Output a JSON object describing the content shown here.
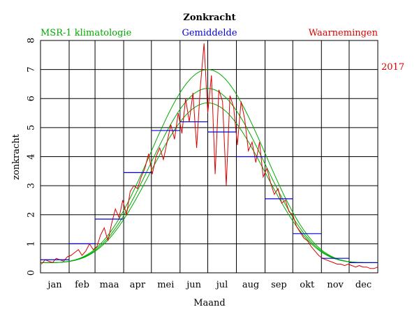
{
  "chart_data": {
    "type": "line",
    "title": "Zonkracht",
    "xlabel": "Maand",
    "ylabel": "zonkracht",
    "year_label": "2017",
    "ylim": [
      0,
      8
    ],
    "xlim": [
      0,
      365
    ],
    "yticks": [
      "0",
      "1",
      "2",
      "3",
      "4",
      "5",
      "6",
      "7",
      "8"
    ],
    "months": [
      "jan",
      "feb",
      "maa",
      "apr",
      "mei",
      "jun",
      "jul",
      "aug",
      "sep",
      "okt",
      "nov",
      "dec"
    ],
    "grid": true,
    "legend": [
      {
        "name": "MSR-1 klimatologie",
        "color": "#00aa00"
      },
      {
        "name": "Gemiddelde",
        "color": "#0000dd"
      },
      {
        "name": "Waarnemingen",
        "color": "#dd0000"
      }
    ],
    "climatology_peaks": [
      7.0,
      6.35,
      5.85
    ],
    "climatology_baseline": 0.35,
    "climatology_peak_day": 181,
    "monthly_means": [
      0.45,
      1.0,
      1.85,
      3.45,
      4.9,
      5.2,
      4.85,
      4.0,
      2.55,
      1.35,
      0.5,
      0.35
    ],
    "observations": {
      "start_day": 1,
      "step_days": 4,
      "values": [
        0.3,
        0.45,
        0.4,
        0.35,
        0.5,
        0.45,
        0.4,
        0.55,
        0.6,
        0.7,
        0.8,
        0.6,
        0.75,
        1.0,
        0.8,
        0.9,
        1.3,
        1.55,
        1.1,
        1.7,
        2.2,
        1.9,
        2.5,
        2.0,
        2.8,
        3.0,
        2.9,
        3.3,
        3.6,
        4.1,
        3.4,
        4.0,
        4.3,
        3.9,
        4.5,
        5.1,
        4.6,
        5.5,
        4.8,
        6.0,
        5.2,
        6.2,
        4.3,
        6.4,
        7.9,
        5.5,
        6.8,
        3.4,
        6.3,
        5.9,
        3.0,
        6.1,
        5.7,
        4.4,
        5.9,
        5.3,
        4.2,
        4.5,
        3.8,
        4.5,
        3.3,
        3.6,
        3.1,
        2.7,
        2.9,
        2.4,
        2.5,
        2.1,
        2.0,
        1.6,
        1.4,
        1.2,
        1.1,
        0.9,
        0.75,
        0.6,
        0.5,
        0.45,
        0.4,
        0.35,
        0.3,
        0.3,
        0.25,
        0.3,
        0.25,
        0.2,
        0.25,
        0.2,
        0.2,
        0.15,
        0.15,
        0.2
      ]
    }
  }
}
